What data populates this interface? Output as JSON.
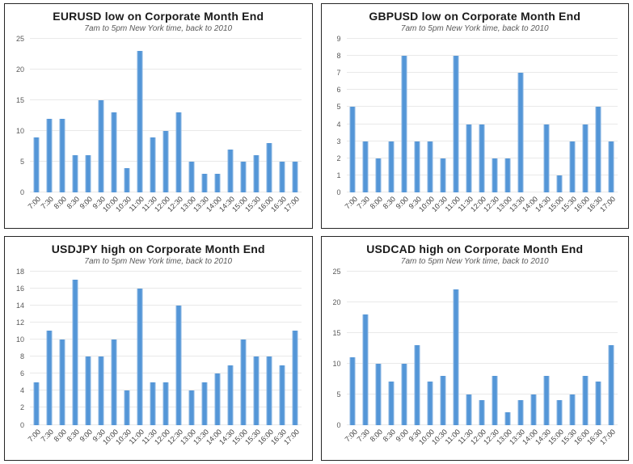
{
  "style": {
    "bar_color": "#5496d7",
    "bar_edge_color": "#8ab6e3",
    "grid_color": "#e9e9e9",
    "axis_tick_color": "#595959",
    "x_tick_color": "#404040",
    "title_color": "#1a1a1a",
    "panel_border_color": "#262626"
  },
  "chart_data": [
    {
      "type": "bar",
      "title": "EURUSD low on Corporate Month End",
      "subtitle": "7am to 5pm New York time, back to 2010",
      "categories": [
        "7:00",
        "7:30",
        "8:00",
        "8:30",
        "9:00",
        "9:30",
        "10:00",
        "10:30",
        "11:00",
        "11:30",
        "12:00",
        "12:30",
        "13:00",
        "13:30",
        "14:00",
        "14:30",
        "15:00",
        "15:30",
        "16:00",
        "16:30",
        "17:00"
      ],
      "values": [
        9,
        12,
        12,
        6,
        6,
        15,
        13,
        4,
        23,
        9,
        10,
        13,
        5,
        3,
        3,
        7,
        5,
        6,
        8,
        5,
        5
      ],
      "xlabel": "",
      "ylabel": "",
      "ylim": [
        0,
        25
      ],
      "yticks": [
        0,
        5,
        10,
        15,
        20,
        25
      ],
      "grid": true,
      "legend": "none"
    },
    {
      "type": "bar",
      "title": "GBPUSD low on Corporate Month End",
      "subtitle": "7am to 5pm New York time, back to 2010",
      "categories": [
        "7:00",
        "7:30",
        "8:00",
        "8:30",
        "9:00",
        "9:30",
        "10:00",
        "10:30",
        "11:00",
        "11:30",
        "12:00",
        "12:30",
        "13:00",
        "13:30",
        "14:00",
        "14:30",
        "15:00",
        "15:30",
        "16:00",
        "16:30",
        "17:00"
      ],
      "values": [
        5,
        3,
        2,
        3,
        8,
        3,
        3,
        2,
        8,
        4,
        4,
        2,
        2,
        7,
        0,
        4,
        1,
        3,
        4,
        5,
        3
      ],
      "xlabel": "",
      "ylabel": "",
      "ylim": [
        0,
        9
      ],
      "yticks": [
        0,
        1,
        2,
        3,
        4,
        5,
        6,
        7,
        8,
        9
      ],
      "grid": true,
      "legend": "none"
    },
    {
      "type": "bar",
      "title": "USDJPY high on Corporate Month End",
      "subtitle": "7am to 5pm New York time, back to 2010",
      "categories": [
        "7:00",
        "7:30",
        "8:00",
        "8:30",
        "9:00",
        "9:30",
        "10:00",
        "10:30",
        "11:00",
        "11:30",
        "12:00",
        "12:30",
        "13:00",
        "13:30",
        "14:00",
        "14:30",
        "15:00",
        "15:30",
        "16:00",
        "16:30",
        "17:00"
      ],
      "values": [
        5,
        11,
        10,
        17,
        8,
        8,
        10,
        4,
        16,
        5,
        5,
        14,
        4,
        5,
        6,
        7,
        10,
        8,
        8,
        7,
        11
      ],
      "xlabel": "",
      "ylabel": "",
      "ylim": [
        0,
        18
      ],
      "yticks": [
        0,
        2,
        4,
        6,
        8,
        10,
        12,
        14,
        16,
        18
      ],
      "grid": true,
      "legend": "none"
    },
    {
      "type": "bar",
      "title": "USDCAD high on Corporate Month End",
      "subtitle": "7am to 5pm New York time, back to 2010",
      "categories": [
        "7:00",
        "7:30",
        "8:00",
        "8:30",
        "9:00",
        "9:30",
        "10:00",
        "10:30",
        "11:00",
        "11:30",
        "12:00",
        "12:30",
        "13:00",
        "13:30",
        "14:00",
        "14:30",
        "15:00",
        "15:30",
        "16:00",
        "16:30",
        "17:00"
      ],
      "values": [
        11,
        18,
        10,
        7,
        10,
        13,
        7,
        8,
        22,
        5,
        4,
        8,
        2,
        4,
        5,
        8,
        4,
        5,
        8,
        7,
        13
      ],
      "xlabel": "",
      "ylabel": "",
      "ylim": [
        0,
        25
      ],
      "yticks": [
        0,
        5,
        10,
        15,
        20,
        25
      ],
      "grid": true,
      "legend": "none"
    }
  ]
}
